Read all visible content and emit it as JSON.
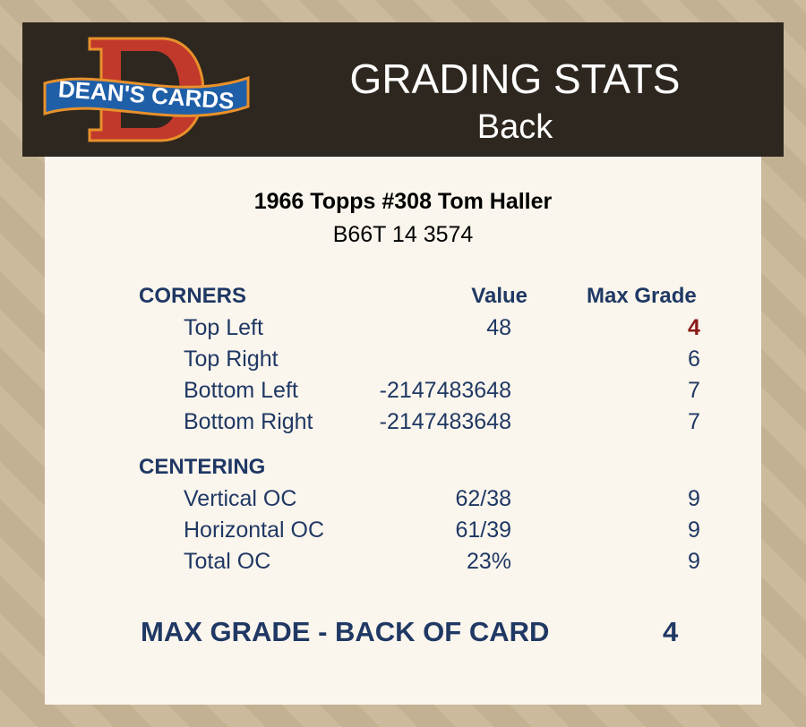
{
  "header": {
    "logo_text": "DEAN'S CARDS",
    "title": "GRADING STATS",
    "subtitle": "Back"
  },
  "card": {
    "name": "1966 Topps #308 Tom Haller",
    "code": "B66T 14 3574"
  },
  "columns": {
    "value": "Value",
    "max_grade": "Max Grade"
  },
  "corners": {
    "title": "CORNERS",
    "rows": [
      {
        "label": "Top Left",
        "value": "48",
        "max": "4",
        "highlight": true
      },
      {
        "label": "Top Right",
        "value": "",
        "max": "6"
      },
      {
        "label": "Bottom Left",
        "value": "-2147483648",
        "max": "7"
      },
      {
        "label": "Bottom Right",
        "value": "-2147483648",
        "max": "7"
      }
    ]
  },
  "centering": {
    "title": "CENTERING",
    "rows": [
      {
        "label": "Vertical OC",
        "value": "62/38",
        "max": "9"
      },
      {
        "label": "Horizontal OC",
        "value": "61/39",
        "max": "9"
      },
      {
        "label": "Total OC",
        "value": "23%",
        "max": "9"
      }
    ]
  },
  "summary": {
    "label": "MAX GRADE - BACK OF CARD",
    "value": "4"
  },
  "colors": {
    "text": "#1f3864",
    "highlight": "#8b1a1a",
    "header_bg": "#2e271f",
    "panel_bg": "#fbf6ed"
  }
}
